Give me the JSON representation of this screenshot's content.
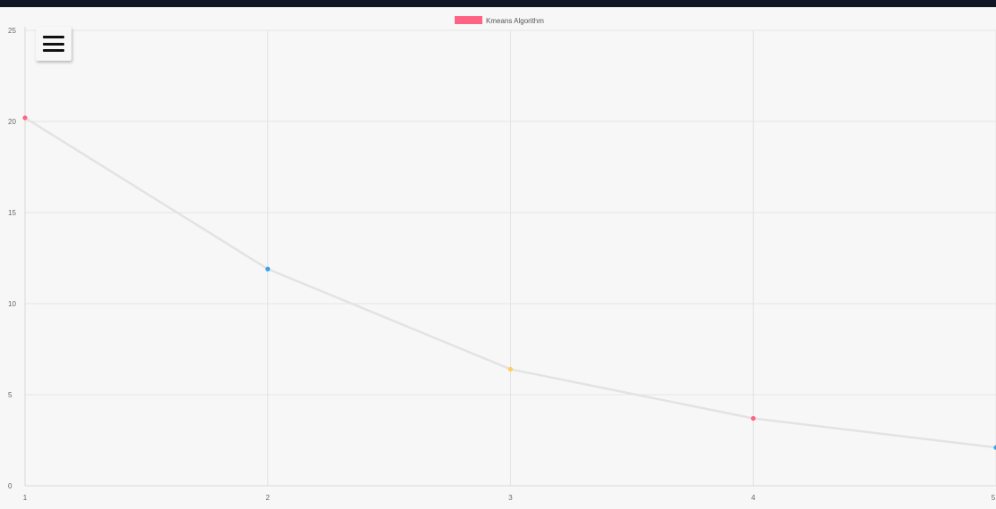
{
  "menu": {
    "icon": "hamburger-menu-icon"
  },
  "chart_data": {
    "type": "line",
    "x": [
      1,
      2,
      3,
      4,
      5
    ],
    "series": [
      {
        "name": "Kmeans Algorithm",
        "values": [
          20.2,
          11.9,
          6.4,
          3.7,
          2.1
        ],
        "legend_color": "#ff6384",
        "line_color": "#e3e3e3",
        "point_colors": [
          "#ff6384",
          "#36a2eb",
          "#ffce56",
          "#ff6384",
          "#36a2eb"
        ]
      }
    ],
    "ylim": [
      0,
      25
    ],
    "yticks": [
      0,
      5,
      10,
      15,
      20,
      25
    ],
    "xticks": [
      1,
      2,
      3,
      4,
      5
    ],
    "grid": true,
    "legend_position": "top-center",
    "title": "",
    "xlabel": "",
    "ylabel": ""
  }
}
